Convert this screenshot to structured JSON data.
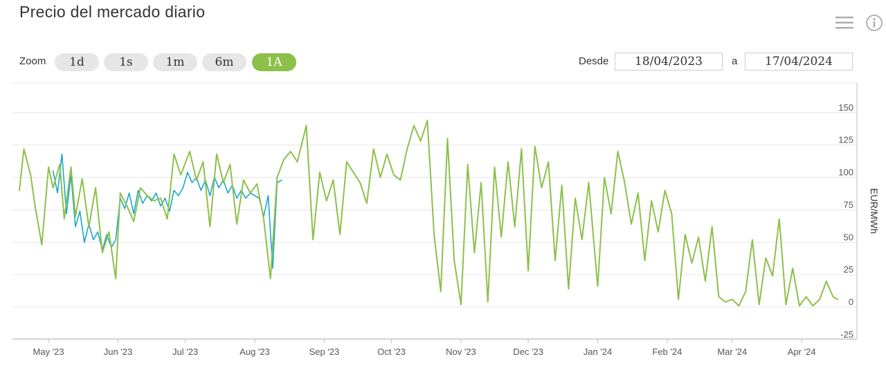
{
  "header": {
    "title": "Precio del mercado diario"
  },
  "icons": {
    "menu": "hamburger-menu-icon",
    "info": "info-icon"
  },
  "zoom": {
    "label": "Zoom",
    "buttons": [
      "1d",
      "1s",
      "1m",
      "6m",
      "1A"
    ],
    "active": "1A"
  },
  "range": {
    "from_label": "Desde",
    "from_value": "18/04/2023",
    "to_label": "a",
    "to_value": "17/04/2024"
  },
  "colors": {
    "primary": "#8cc04a",
    "secondary": "#19a8c4"
  },
  "chart_data": {
    "type": "line",
    "title": "Precio del mercado diario",
    "ylabel": "EUR/MWh",
    "ylim": [
      -25,
      175
    ],
    "yticks": [
      -25,
      0,
      25,
      50,
      75,
      100,
      125,
      150
    ],
    "grid": true,
    "xlim": [
      "2023-04-18",
      "2024-04-17"
    ],
    "xticks": [
      {
        "date": "2023-05-01",
        "label": "May '23"
      },
      {
        "date": "2023-06-01",
        "label": "Jun '23"
      },
      {
        "date": "2023-07-01",
        "label": "Jul '23"
      },
      {
        "date": "2023-08-01",
        "label": "Aug '23"
      },
      {
        "date": "2023-09-01",
        "label": "Sep '23"
      },
      {
        "date": "2023-10-01",
        "label": "Oct '23"
      },
      {
        "date": "2023-11-01",
        "label": "Nov '23"
      },
      {
        "date": "2023-12-01",
        "label": "Dec '23"
      },
      {
        "date": "2024-01-01",
        "label": "Jan '24"
      },
      {
        "date": "2024-02-01",
        "label": "Feb '24"
      },
      {
        "date": "2024-03-01",
        "label": "Mar '24"
      },
      {
        "date": "2024-04-01",
        "label": "Apr '24"
      }
    ],
    "series": [
      {
        "color": "#8cc04a",
        "points": [
          [
            "2023-04-18",
            90
          ],
          [
            "2023-04-20",
            122
          ],
          [
            "2023-04-23",
            102
          ],
          [
            "2023-04-25",
            78
          ],
          [
            "2023-04-28",
            48
          ],
          [
            "2023-05-01",
            108
          ],
          [
            "2023-05-03",
            92
          ],
          [
            "2023-05-06",
            110
          ],
          [
            "2023-05-08",
            68
          ],
          [
            "2023-05-11",
            108
          ],
          [
            "2023-05-13",
            70
          ],
          [
            "2023-05-16",
            99
          ],
          [
            "2023-05-19",
            62
          ],
          [
            "2023-05-22",
            92
          ],
          [
            "2023-05-25",
            42
          ],
          [
            "2023-05-28",
            58
          ],
          [
            "2023-05-31",
            22
          ],
          [
            "2023-06-02",
            88
          ],
          [
            "2023-06-05",
            78
          ],
          [
            "2023-06-08",
            66
          ],
          [
            "2023-06-11",
            92
          ],
          [
            "2023-06-14",
            86
          ],
          [
            "2023-06-17",
            82
          ],
          [
            "2023-06-20",
            84
          ],
          [
            "2023-06-23",
            68
          ],
          [
            "2023-06-26",
            118
          ],
          [
            "2023-06-29",
            102
          ],
          [
            "2023-07-03",
            120
          ],
          [
            "2023-07-06",
            98
          ],
          [
            "2023-07-09",
            112
          ],
          [
            "2023-07-12",
            62
          ],
          [
            "2023-07-15",
            118
          ],
          [
            "2023-07-18",
            96
          ],
          [
            "2023-07-21",
            110
          ],
          [
            "2023-07-24",
            64
          ],
          [
            "2023-07-27",
            98
          ],
          [
            "2023-07-30",
            88
          ],
          [
            "2023-08-02",
            95
          ],
          [
            "2023-08-05",
            68
          ],
          [
            "2023-08-08",
            22
          ],
          [
            "2023-08-11",
            100
          ],
          [
            "2023-08-14",
            114
          ],
          [
            "2023-08-17",
            120
          ],
          [
            "2023-08-20",
            112
          ],
          [
            "2023-08-24",
            140
          ],
          [
            "2023-08-27",
            52
          ],
          [
            "2023-08-30",
            104
          ],
          [
            "2023-09-02",
            82
          ],
          [
            "2023-09-05",
            98
          ],
          [
            "2023-09-08",
            56
          ],
          [
            "2023-09-11",
            112
          ],
          [
            "2023-09-14",
            104
          ],
          [
            "2023-09-17",
            96
          ],
          [
            "2023-09-20",
            80
          ],
          [
            "2023-09-23",
            122
          ],
          [
            "2023-09-26",
            100
          ],
          [
            "2023-09-29",
            118
          ],
          [
            "2023-10-02",
            102
          ],
          [
            "2023-10-05",
            98
          ],
          [
            "2023-10-08",
            122
          ],
          [
            "2023-10-11",
            140
          ],
          [
            "2023-10-14",
            128
          ],
          [
            "2023-10-17",
            144
          ],
          [
            "2023-10-20",
            56
          ],
          [
            "2023-10-23",
            12
          ],
          [
            "2023-10-26",
            130
          ],
          [
            "2023-10-29",
            36
          ],
          [
            "2023-11-01",
            2
          ],
          [
            "2023-11-04",
            110
          ],
          [
            "2023-11-07",
            42
          ],
          [
            "2023-11-10",
            96
          ],
          [
            "2023-11-13",
            4
          ],
          [
            "2023-11-16",
            108
          ],
          [
            "2023-11-19",
            54
          ],
          [
            "2023-11-22",
            112
          ],
          [
            "2023-11-25",
            62
          ],
          [
            "2023-11-28",
            122
          ],
          [
            "2023-12-01",
            28
          ],
          [
            "2023-12-04",
            124
          ],
          [
            "2023-12-07",
            92
          ],
          [
            "2023-12-10",
            112
          ],
          [
            "2023-12-13",
            36
          ],
          [
            "2023-12-16",
            94
          ],
          [
            "2023-12-19",
            14
          ],
          [
            "2023-12-22",
            84
          ],
          [
            "2023-12-25",
            52
          ],
          [
            "2023-12-28",
            96
          ],
          [
            "2024-01-01",
            16
          ],
          [
            "2024-01-04",
            100
          ],
          [
            "2024-01-07",
            72
          ],
          [
            "2024-01-10",
            120
          ],
          [
            "2024-01-13",
            96
          ],
          [
            "2024-01-16",
            64
          ],
          [
            "2024-01-19",
            88
          ],
          [
            "2024-01-22",
            36
          ],
          [
            "2024-01-25",
            82
          ],
          [
            "2024-01-28",
            58
          ],
          [
            "2024-01-31",
            90
          ],
          [
            "2024-02-03",
            72
          ],
          [
            "2024-02-06",
            6
          ],
          [
            "2024-02-09",
            56
          ],
          [
            "2024-02-12",
            34
          ],
          [
            "2024-02-15",
            54
          ],
          [
            "2024-02-18",
            20
          ],
          [
            "2024-02-21",
            62
          ],
          [
            "2024-02-24",
            8
          ],
          [
            "2024-02-27",
            4
          ],
          [
            "2024-03-01",
            6
          ],
          [
            "2024-03-04",
            1
          ],
          [
            "2024-03-07",
            12
          ],
          [
            "2024-03-10",
            52
          ],
          [
            "2024-03-13",
            2
          ],
          [
            "2024-03-16",
            38
          ],
          [
            "2024-03-19",
            24
          ],
          [
            "2024-03-22",
            68
          ],
          [
            "2024-03-25",
            2
          ],
          [
            "2024-03-28",
            30
          ],
          [
            "2024-03-31",
            1
          ],
          [
            "2024-04-03",
            8
          ],
          [
            "2024-04-06",
            1
          ],
          [
            "2024-04-09",
            6
          ],
          [
            "2024-04-12",
            20
          ],
          [
            "2024-04-15",
            8
          ],
          [
            "2024-04-17",
            6
          ]
        ]
      },
      {
        "color": "#19a8c4",
        "points": [
          [
            "2023-05-03",
            105
          ],
          [
            "2023-05-05",
            88
          ],
          [
            "2023-05-07",
            118
          ],
          [
            "2023-05-09",
            72
          ],
          [
            "2023-05-11",
            102
          ],
          [
            "2023-05-13",
            62
          ],
          [
            "2023-05-15",
            74
          ],
          [
            "2023-05-17",
            50
          ],
          [
            "2023-05-19",
            64
          ],
          [
            "2023-05-21",
            52
          ],
          [
            "2023-05-23",
            58
          ],
          [
            "2023-05-25",
            44
          ],
          [
            "2023-05-27",
            56
          ],
          [
            "2023-05-29",
            46
          ],
          [
            "2023-05-31",
            52
          ],
          [
            "2023-06-02",
            84
          ],
          [
            "2023-06-04",
            76
          ],
          [
            "2023-06-06",
            88
          ],
          [
            "2023-06-08",
            72
          ],
          [
            "2023-06-10",
            90
          ],
          [
            "2023-06-12",
            80
          ],
          [
            "2023-06-14",
            86
          ],
          [
            "2023-06-16",
            82
          ],
          [
            "2023-06-18",
            88
          ],
          [
            "2023-06-20",
            78
          ],
          [
            "2023-06-22",
            84
          ],
          [
            "2023-06-24",
            74
          ],
          [
            "2023-06-26",
            90
          ],
          [
            "2023-06-28",
            86
          ],
          [
            "2023-06-30",
            92
          ],
          [
            "2023-07-02",
            104
          ],
          [
            "2023-07-04",
            96
          ],
          [
            "2023-07-06",
            100
          ],
          [
            "2023-07-08",
            90
          ],
          [
            "2023-07-10",
            98
          ],
          [
            "2023-07-12",
            86
          ],
          [
            "2023-07-14",
            100
          ],
          [
            "2023-07-16",
            92
          ],
          [
            "2023-07-18",
            98
          ],
          [
            "2023-07-20",
            88
          ],
          [
            "2023-07-22",
            94
          ],
          [
            "2023-07-24",
            84
          ],
          [
            "2023-07-26",
            90
          ],
          [
            "2023-07-28",
            84
          ],
          [
            "2023-07-30",
            88
          ],
          [
            "2023-08-01",
            86
          ],
          [
            "2023-08-03",
            84
          ],
          [
            "2023-08-05",
            70
          ],
          [
            "2023-08-07",
            86
          ],
          [
            "2023-08-09",
            30
          ],
          [
            "2023-08-11",
            96
          ],
          [
            "2023-08-13",
            98
          ]
        ]
      }
    ]
  }
}
